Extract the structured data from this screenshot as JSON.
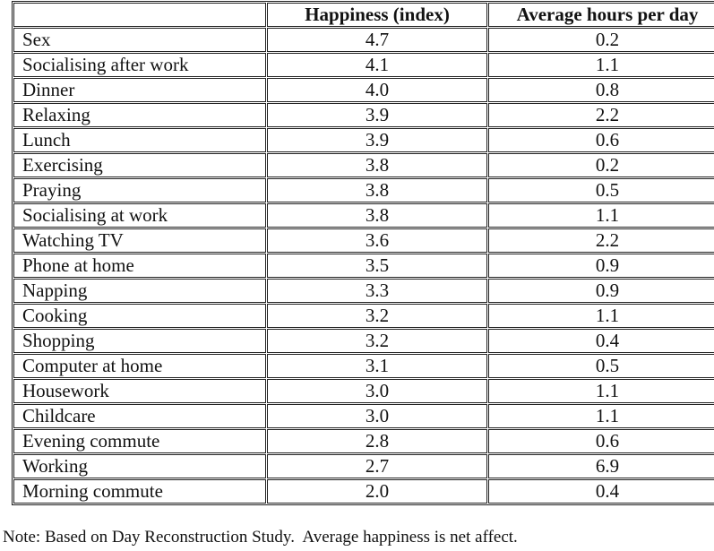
{
  "page": {
    "background_color": "#ffffff",
    "text_color": "#121212",
    "border_color": "#222222"
  },
  "table": {
    "headers": [
      "",
      "Happiness (index)",
      "Average hours per day"
    ],
    "rows": [
      {
        "activity": "Sex",
        "happiness": "4.7",
        "hours": "0.2"
      },
      {
        "activity": "Socialising after work",
        "happiness": "4.1",
        "hours": "1.1"
      },
      {
        "activity": "Dinner",
        "happiness": "4.0",
        "hours": "0.8"
      },
      {
        "activity": "Relaxing",
        "happiness": "3.9",
        "hours": "2.2"
      },
      {
        "activity": "Lunch",
        "happiness": "3.9",
        "hours": "0.6"
      },
      {
        "activity": "Exercising",
        "happiness": "3.8",
        "hours": "0.2"
      },
      {
        "activity": "Praying",
        "happiness": "3.8",
        "hours": "0.5"
      },
      {
        "activity": "Socialising at work",
        "happiness": "3.8",
        "hours": "1.1"
      },
      {
        "activity": "Watching TV",
        "happiness": "3.6",
        "hours": "2.2"
      },
      {
        "activity": "Phone at home",
        "happiness": "3.5",
        "hours": "0.9"
      },
      {
        "activity": "Napping",
        "happiness": "3.3",
        "hours": "0.9"
      },
      {
        "activity": "Cooking",
        "happiness": "3.2",
        "hours": "1.1"
      },
      {
        "activity": "Shopping",
        "happiness": "3.2",
        "hours": "0.4"
      },
      {
        "activity": "Computer at home",
        "happiness": "3.1",
        "hours": "0.5"
      },
      {
        "activity": "Housework",
        "happiness": "3.0",
        "hours": "1.1"
      },
      {
        "activity": "Childcare",
        "happiness": "3.0",
        "hours": "1.1"
      },
      {
        "activity": "Evening commute",
        "happiness": "2.8",
        "hours": "0.6"
      },
      {
        "activity": "Working",
        "happiness": "2.7",
        "hours": "6.9"
      },
      {
        "activity": "Morning commute",
        "happiness": "2.0",
        "hours": "0.4"
      }
    ]
  },
  "note": "Note: Based on Day Reconstruction Study.  Average happiness is net affect."
}
